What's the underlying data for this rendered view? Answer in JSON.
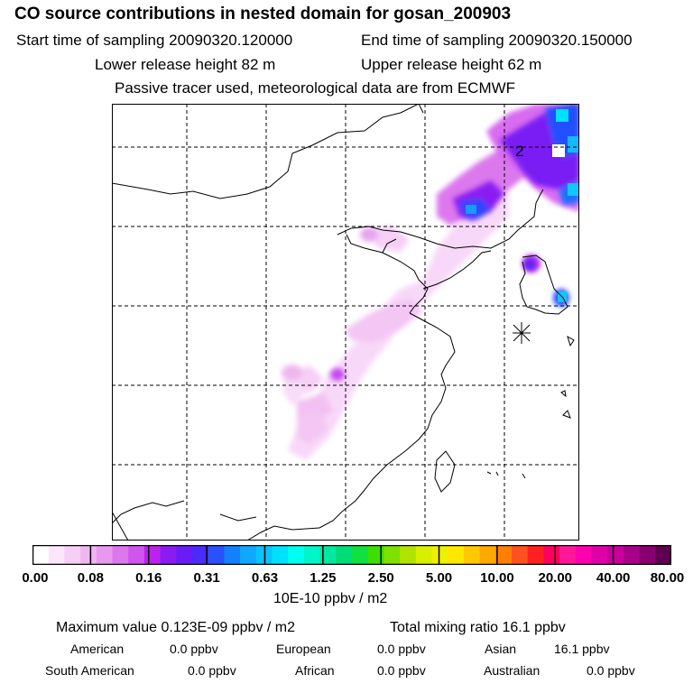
{
  "header": {
    "title": "CO  source contributions in nested domain for gosan_200903",
    "start_time": "Start time of sampling 20090320.120000",
    "end_time": "End time of sampling 20090320.150000",
    "lower_height": "Lower release height   82 m",
    "upper_height": "Upper release height   62 m",
    "tracer_note": "Passive tracer used, meteorological data are from ECMWF"
  },
  "map": {
    "grid": "dashed",
    "marker_label": "2",
    "receptor_symbol": "star"
  },
  "colorbar": {
    "colors": [
      "#ffffff",
      "#fbe6fb",
      "#f6cff6",
      "#f0b6f0",
      "#e898ee",
      "#dd77ee",
      "#cf55ee",
      "#bb22ee",
      "#8a1cf2",
      "#6a1cf8",
      "#4a2cff",
      "#2a50ff",
      "#1480ff",
      "#10a8ff",
      "#08c4ff",
      "#00e0ff",
      "#00ffee",
      "#00f5c8",
      "#00e8a0",
      "#00dc78",
      "#10e040",
      "#3ce000",
      "#80e000",
      "#b0e400",
      "#d8f000",
      "#eef000",
      "#ffe800",
      "#ffc800",
      "#ffa800",
      "#ff8000",
      "#ff5020",
      "#ff2020",
      "#ff0060",
      "#ff1898",
      "#ff00b0",
      "#e000a8",
      "#c8009c",
      "#a80088",
      "#880070",
      "#600050"
    ],
    "tick_labels": [
      "0.00",
      "0.08",
      "0.16",
      "0.31",
      "0.63",
      "1.25",
      "2.50",
      "5.00",
      "10.00",
      "20.00",
      "40.00",
      "80.00"
    ],
    "unit": "10E-10 ppbv / m2"
  },
  "stats": {
    "maximum": "Maximum value  0.123E-09 ppbv / m2",
    "total": "Total mixing ratio       16.1 ppbv",
    "american_label": "American",
    "american_value": "0.0 ppbv",
    "european_label": "European",
    "european_value": "0.0 ppbv",
    "asian_label": "Asian",
    "asian_value": "16.1 ppbv",
    "south_american_label": "South American",
    "south_american_value": "0.0 ppbv",
    "african_label": "African",
    "african_value": "0.0 ppbv",
    "australian_label": "Australian",
    "australian_value": "0.0 ppbv"
  }
}
